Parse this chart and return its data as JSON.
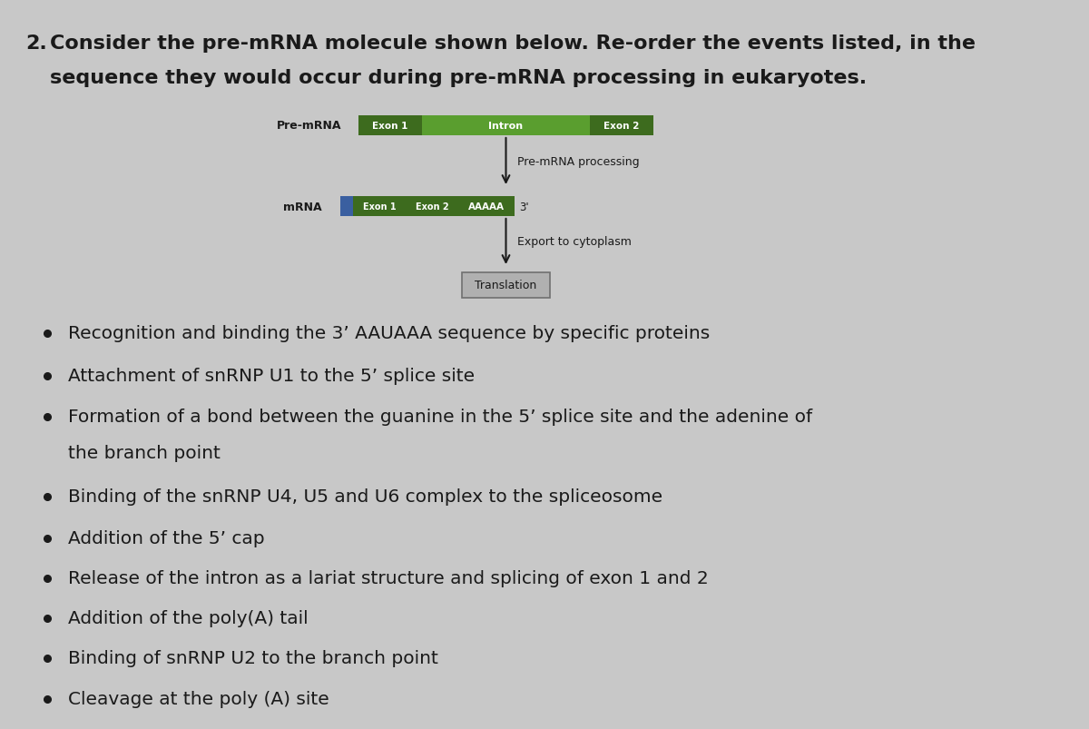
{
  "background_color": "#c8c8c8",
  "question_number": "2.",
  "question_line1": "Consider the pre-mRNA molecule shown below. Re-order the events listed, in the",
  "question_line2": "sequence they would occur during pre-mRNA processing in eukaryotes.",
  "diagram": {
    "pre_mrna_label": "Pre-mRNA",
    "exon1_text": "Exon 1",
    "exon1_color": "#3d6b1e",
    "intron_text": "Intron",
    "intron_color": "#5a9e2f",
    "exon2_text": "Exon 2",
    "exon2_color": "#3d6b1e",
    "arrow1_label": "Pre-mRNA processing",
    "mrna_label": "mRNA",
    "mrna_exon1_text": "Exon 1",
    "mrna_exon1_color": "#3d6b1e",
    "mrna_exon2_text": "Exon 2",
    "mrna_exon2_color": "#3d6b1e",
    "mrna_polyA_text": "AAAAA",
    "mrna_polyA_color": "#3d6b1e",
    "mrna_cap_color": "#3a5fa0",
    "three_prime": "3'",
    "arrow2_label": "Export to cytoplasm",
    "translation_text": "Translation",
    "translation_bg": "#b0b0b0",
    "translation_border": "#707070"
  },
  "bullet_points": [
    "Recognition and binding the 3’ AAUAAA sequence by specific proteins",
    "Attachment of snRNP U1 to the 5’ splice site",
    "Formation of a bond between the guanine in the 5’ splice site and the adenine of",
    "the branch point",
    "Binding of the snRNP U4, U5 and U6 complex to the spliceosome",
    "Addition of the 5’ cap",
    "Release of the intron as a lariat structure and splicing of exon 1 and 2",
    "Addition of the poly(A) tail",
    "Binding of snRNP U2 to the branch point",
    "Cleavage at the poly (A) site"
  ],
  "bullet_has_dot": [
    true,
    true,
    true,
    false,
    true,
    true,
    true,
    true,
    true,
    true
  ],
  "text_color": "#1a1a1a"
}
